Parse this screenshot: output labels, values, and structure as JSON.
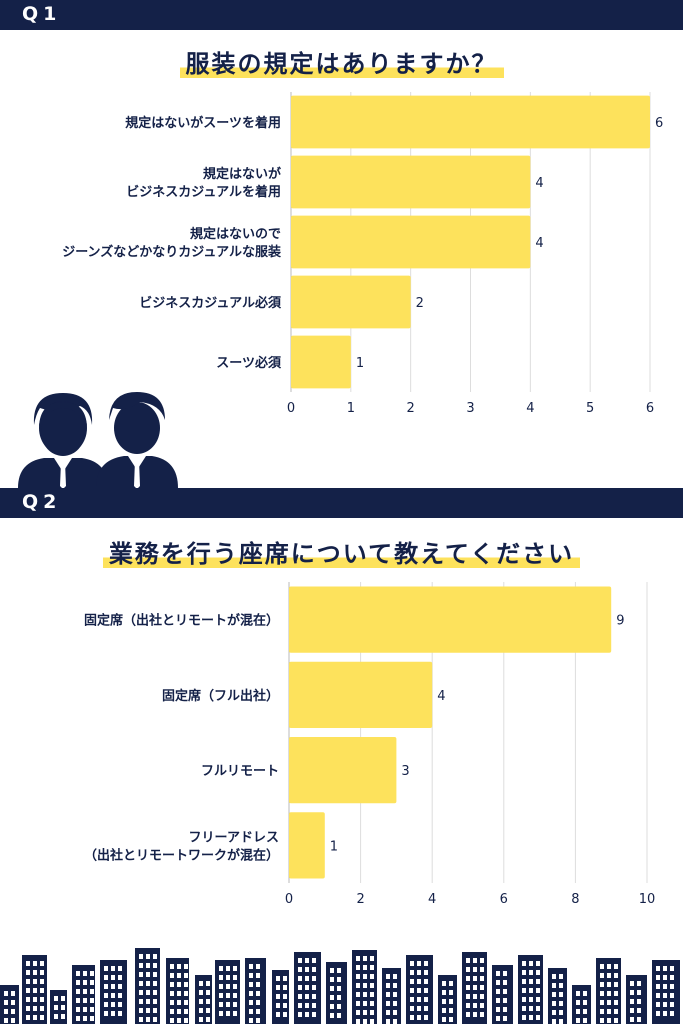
{
  "q1": {
    "label": "Q1",
    "title": "服装の規定はありますか？"
  },
  "q2": {
    "label": "Q2",
    "title": "業務を行う座席について教えてください"
  },
  "colors": {
    "navy": "#142148",
    "bar": "#fde25c",
    "grid": "#dddddd"
  },
  "icons": {
    "people": "businessman-icon",
    "skyline": "city-skyline-icon"
  },
  "chart_data": [
    {
      "type": "bar",
      "orientation": "horizontal",
      "title": "服装の規定はありますか？",
      "categories": [
        [
          "規定はないがスーツを着用"
        ],
        [
          "規定はないが",
          "ビジネスカジュアルを着用"
        ],
        [
          "規定はないので",
          "ジーンズなどかなりカジュアルな服装"
        ],
        [
          "ビジネスカジュアル必須"
        ],
        [
          "スーツ必須"
        ]
      ],
      "values": [
        6,
        4,
        4,
        2,
        1
      ],
      "xlim": [
        0,
        6
      ],
      "xticks": [
        "0",
        "1",
        "2",
        "3",
        "4",
        "5",
        "6"
      ],
      "grid": true
    },
    {
      "type": "bar",
      "orientation": "horizontal",
      "title": "業務を行う座席について教えてください",
      "categories": [
        [
          "固定席（出社とリモートが混在）"
        ],
        [
          "固定席（フル出社）"
        ],
        [
          "フルリモート"
        ],
        [
          "フリーアドレス",
          "（出社とリモートワークが混在）"
        ]
      ],
      "values": [
        9,
        4,
        3,
        1
      ],
      "xlim": [
        0,
        10
      ],
      "xticks": [
        "0",
        "2",
        "4",
        "6",
        "8",
        "10"
      ],
      "grid": true
    }
  ]
}
